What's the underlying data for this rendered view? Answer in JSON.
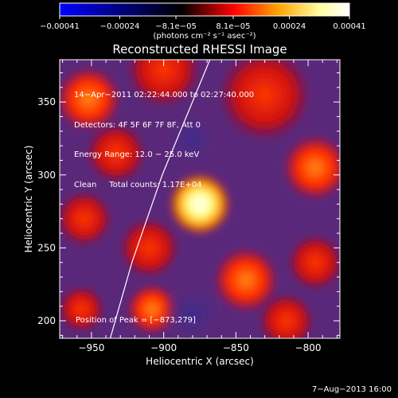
{
  "chart_data": {
    "type": "heatmap",
    "title": "Reconstructed RHESSI Image",
    "xlabel": "Heliocentric X (arcsec)",
    "ylabel": "Heliocentric Y (arcsec)",
    "xlim": [
      -972,
      -778
    ],
    "ylim": [
      188,
      379
    ],
    "x_ticks": [
      -950,
      -900,
      -850,
      -800
    ],
    "x_tick_labels": [
      "−950",
      "−900",
      "−850",
      "−800"
    ],
    "y_ticks": [
      200,
      250,
      300,
      350
    ],
    "y_tick_labels": [
      "200",
      "250",
      "300",
      "350"
    ],
    "colorbar": {
      "min": -0.00041,
      "max": 0.00041,
      "ticks": [
        -0.00041,
        -0.00024,
        -8.1e-05,
        8.1e-05,
        0.00024,
        0.00041
      ],
      "tick_labels": [
        "−0.00041",
        "−0.00024",
        "−8.1e−05",
        "8.1e−05",
        "0.00024",
        "0.00041"
      ],
      "unit_label": "(photons cm⁻² s⁻¹ asec⁻²)",
      "colors": [
        "#0000ff",
        "#000000",
        "#ff0000",
        "#ffa000",
        "#ffffa0",
        "#ffffff"
      ]
    },
    "info": {
      "line1": "14−Apr−2011 02:22:44.000 to 02:27:40.000",
      "line2": "Detectors: 4F 5F 6F 7F 8F, Att 0",
      "line3": "Energy Range: 12.0 − 25.0 keV",
      "line4": "Clean     Total counts: 1.17E+04"
    },
    "peak_label": "Position of Peak = [−873,279]",
    "peak": {
      "x": -873,
      "y": 279,
      "value": 0.00041
    },
    "intensity_sources": [
      {
        "x": -875,
        "y": 280,
        "r": 14,
        "value": 0.00041
      },
      {
        "x": -908,
        "y": 208,
        "r": 11,
        "value": 0.00032
      },
      {
        "x": -910,
        "y": 250,
        "r": 13,
        "value": 0.00012
      },
      {
        "x": -933,
        "y": 315,
        "r": 13,
        "value": 0.00015
      },
      {
        "x": -952,
        "y": 352,
        "r": 14,
        "value": 0.00022
      },
      {
        "x": -900,
        "y": 372,
        "r": 16,
        "value": 0.00018
      },
      {
        "x": -830,
        "y": 355,
        "r": 20,
        "value": 0.00018
      },
      {
        "x": -795,
        "y": 305,
        "r": 14,
        "value": 0.00025
      },
      {
        "x": -843,
        "y": 228,
        "r": 14,
        "value": 0.00024
      },
      {
        "x": -795,
        "y": 240,
        "r": 12,
        "value": 0.00016
      },
      {
        "x": -815,
        "y": 200,
        "r": 12,
        "value": 0.00012
      },
      {
        "x": -957,
        "y": 208,
        "r": 10,
        "value": 8e-05
      },
      {
        "x": -955,
        "y": 270,
        "r": 12,
        "value": 5e-05
      },
      {
        "x": -880,
        "y": 325,
        "r": 12,
        "value": -4e-05
      },
      {
        "x": -880,
        "y": 205,
        "r": 14,
        "value": -5e-05
      }
    ],
    "limb_curve": [
      {
        "x": -937,
        "y": 188
      },
      {
        "x": -922,
        "y": 240
      },
      {
        "x": -901,
        "y": 300
      },
      {
        "x": -868,
        "y": 379
      }
    ],
    "footer_date": "7−Aug−2013 16:00"
  }
}
